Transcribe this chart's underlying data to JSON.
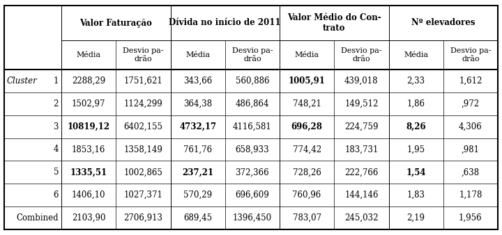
{
  "col_groups": [
    {
      "label": "Valor Faturação"
    },
    {
      "label": "Dívida no início de 2011"
    },
    {
      "label": "Valor Médio do Con-\ntrato"
    },
    {
      "label": "Nº elevadores"
    }
  ],
  "subcol_label_top": "Desvio pa-\ndrão",
  "subcol_label_bottom": "Média",
  "row_labels": [
    "1",
    "2",
    "3",
    "4",
    "5",
    "6",
    "Combined"
  ],
  "cluster_label": "Cluster",
  "data": [
    [
      "2288,29",
      "1751,621",
      "343,66",
      "560,886",
      "1005,91",
      "439,018",
      "2,33",
      "1,612"
    ],
    [
      "1502,97",
      "1124,299",
      "364,38",
      "486,864",
      "748,21",
      "149,512",
      "1,86",
      ",972"
    ],
    [
      "10819,12",
      "6402,155",
      "4732,17",
      "4116,581",
      "696,28",
      "224,759",
      "8,26",
      "4,306"
    ],
    [
      "1853,16",
      "1358,149",
      "761,76",
      "658,933",
      "774,42",
      "183,731",
      "1,95",
      ",981"
    ],
    [
      "1335,51",
      "1002,865",
      "237,21",
      "372,366",
      "728,26",
      "222,766",
      "1,54",
      ",638"
    ],
    [
      "1406,10",
      "1027,371",
      "570,29",
      "696,609",
      "760,96",
      "144,146",
      "1,83",
      "1,178"
    ],
    [
      "2103,90",
      "2706,913",
      "689,45",
      "1396,450",
      "783,07",
      "245,032",
      "2,19",
      "1,956"
    ]
  ],
  "bold_cells": {
    "0": [
      4
    ],
    "2": [
      0,
      2,
      4,
      6
    ],
    "4": [
      0,
      2,
      6
    ]
  },
  "background_color": "#ffffff",
  "text_color": "#000000"
}
